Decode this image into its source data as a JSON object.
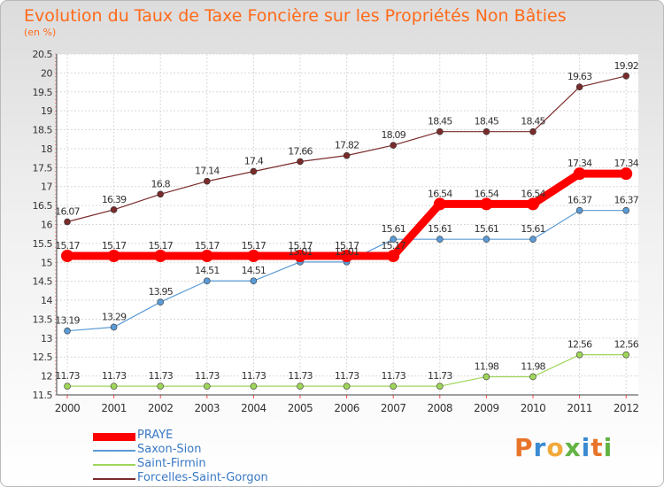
{
  "title": "Evolution du Taux de Taxe Foncière sur les Propriétés Non Bâties",
  "unit_label": "(en %)",
  "logo": {
    "letters": [
      "P",
      "r",
      "o",
      "x",
      "i",
      "t",
      "i"
    ],
    "colors": [
      "#e8742a",
      "#3a8bd1",
      "#f2a93b",
      "#62b344",
      "#3a8bd1",
      "#e8742a",
      "#62b344"
    ]
  },
  "chart_data": {
    "type": "line",
    "title": "Evolution du Taux de Taxe Foncière sur les Propriétés Non Bâties",
    "ylabel": "(en %)",
    "xlabel": "",
    "x": [
      "2000",
      "2001",
      "2002",
      "2003",
      "2004",
      "2005",
      "2006",
      "2007",
      "2008",
      "2009",
      "2010",
      "2011",
      "2012"
    ],
    "ylim": [
      11.5,
      20.5
    ],
    "yticks": [
      "11.5",
      "12",
      "12.5",
      "13",
      "13.5",
      "14",
      "14.5",
      "15",
      "15.5",
      "16",
      "16.5",
      "17",
      "17.5",
      "18",
      "18.5",
      "19",
      "19.5",
      "20",
      "20.5"
    ],
    "grid": true,
    "legend_position": "bottom-left",
    "series": [
      {
        "name": "PRAYE",
        "color": "#ff0000",
        "values": [
          15.17,
          15.17,
          15.17,
          15.17,
          15.17,
          15.17,
          15.17,
          15.17,
          16.54,
          16.54,
          16.54,
          17.34,
          17.34
        ]
      },
      {
        "name": "Saxon-Sion",
        "color": "#5b9bd5",
        "values": [
          13.19,
          13.29,
          13.95,
          14.51,
          14.51,
          15.01,
          15.01,
          15.61,
          15.61,
          15.61,
          15.61,
          16.37,
          16.37
        ]
      },
      {
        "name": "Saint-Firmin",
        "color": "#9fd65a",
        "values": [
          11.73,
          11.73,
          11.73,
          11.73,
          11.73,
          11.73,
          11.73,
          11.73,
          11.73,
          11.98,
          11.98,
          12.56,
          12.56
        ]
      },
      {
        "name": "Forcelles-Saint-Gorgon",
        "color": "#7a2b2b",
        "values": [
          16.07,
          16.39,
          16.8,
          17.14,
          17.4,
          17.66,
          17.82,
          18.09,
          18.45,
          18.45,
          18.45,
          19.63,
          19.92
        ]
      }
    ]
  }
}
